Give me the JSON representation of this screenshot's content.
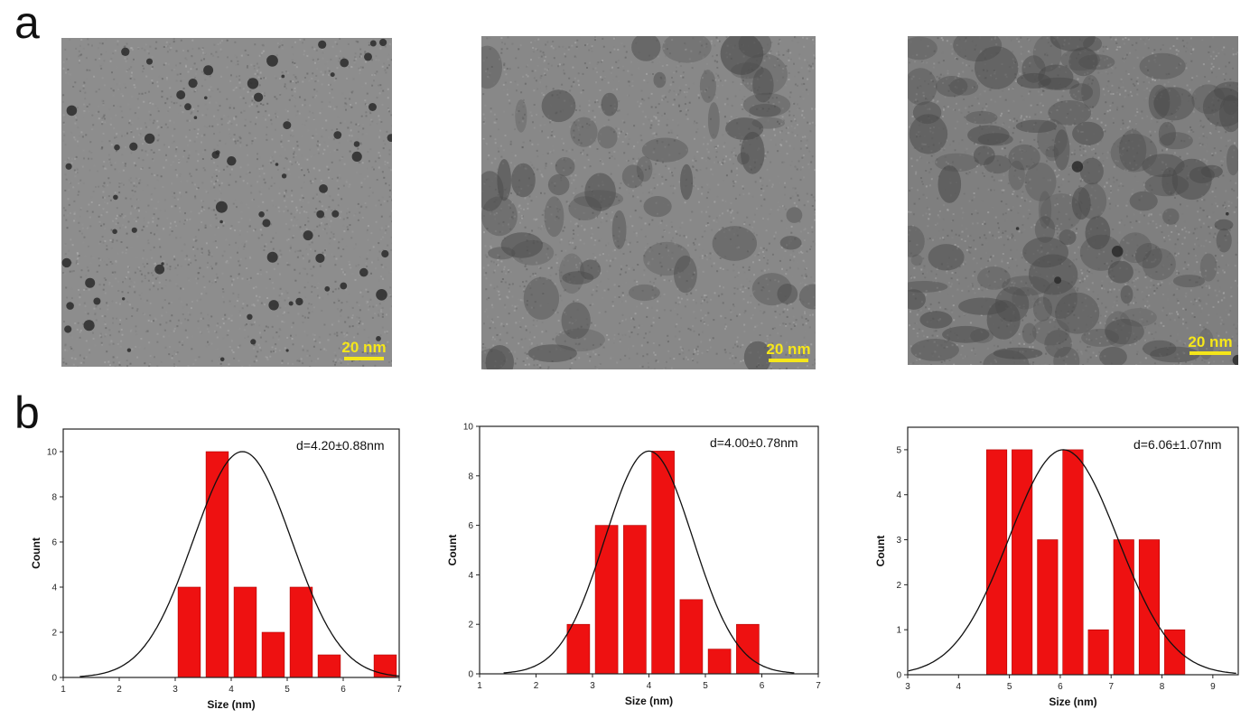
{
  "panels": {
    "a": "a",
    "b": "b"
  },
  "tem_images": [
    {
      "scale_label": "20 nm"
    },
    {
      "scale_label": "20 nm"
    },
    {
      "scale_label": "20 nm"
    }
  ],
  "colors": {
    "bar": "#ee1111",
    "scale": "#f5e61a",
    "curve": "#111111"
  },
  "chart_data": [
    {
      "type": "bar",
      "xlabel": "Size (nm)",
      "ylabel": "Count",
      "annotation": "d=4.20±0.88nm",
      "xlim": [
        1,
        7
      ],
      "ylim": [
        0,
        11
      ],
      "xticks": [
        1,
        2,
        3,
        4,
        5,
        6,
        7
      ],
      "yticks": [
        0,
        2,
        4,
        6,
        8,
        10
      ],
      "bin_width": 0.4,
      "bar_centers": [
        3.25,
        3.75,
        4.25,
        4.75,
        5.25,
        5.75,
        6.75
      ],
      "values": [
        4,
        10,
        4,
        2,
        4,
        1,
        1
      ],
      "fit": {
        "mean": 4.2,
        "sd": 0.88,
        "peak": 10
      }
    },
    {
      "type": "bar",
      "xlabel": "Size (nm)",
      "ylabel": "Count",
      "annotation": "d=4.00±0.78nm",
      "xlim": [
        1,
        7
      ],
      "ylim": [
        0,
        10
      ],
      "xticks": [
        1,
        2,
        3,
        4,
        5,
        6,
        7
      ],
      "yticks": [
        0,
        2,
        4,
        6,
        8,
        10
      ],
      "bin_width": 0.4,
      "bar_centers": [
        2.75,
        3.25,
        3.75,
        4.25,
        4.75,
        5.25,
        5.75
      ],
      "values": [
        2,
        6,
        6,
        9,
        3,
        1,
        2
      ],
      "fit": {
        "mean": 4.0,
        "sd": 0.78,
        "peak": 9
      }
    },
    {
      "type": "bar",
      "xlabel": "Size (nm)",
      "ylabel": "Count",
      "annotation": "d=6.06±1.07nm",
      "xlim": [
        3,
        9.5
      ],
      "ylim": [
        0,
        5.5
      ],
      "xticks": [
        3,
        4,
        5,
        6,
        7,
        8,
        9
      ],
      "yticks": [
        0,
        1,
        2,
        3,
        4,
        5
      ],
      "bin_width": 0.4,
      "bar_centers": [
        4.75,
        5.25,
        5.75,
        6.25,
        6.75,
        7.25,
        7.75,
        8.25
      ],
      "values": [
        5,
        5,
        3,
        5,
        1,
        3,
        3,
        1
      ],
      "fit": {
        "mean": 6.06,
        "sd": 1.07,
        "peak": 5
      }
    }
  ]
}
